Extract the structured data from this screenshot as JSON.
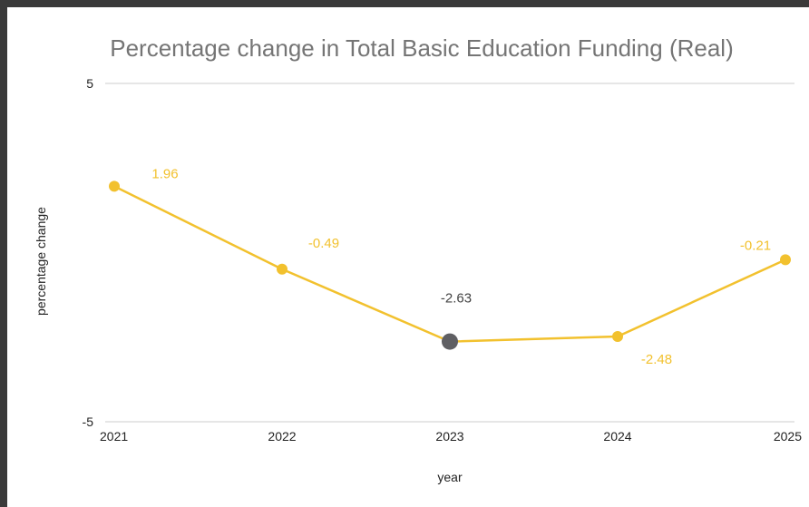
{
  "colors": {
    "series": "#f2c12e",
    "highlight_point": "#5f5f63",
    "highlight_label": "#444444",
    "gridline": "#cccccc",
    "frame": "#3a3a3a"
  },
  "chart_data": {
    "type": "line",
    "title": "Percentage change in Total Basic Education Funding (Real)",
    "xlabel": "year",
    "ylabel": "percentage change",
    "categories": [
      "2021",
      "2022",
      "2023",
      "2024",
      "2025"
    ],
    "series": [
      {
        "values": [
          1.96,
          -0.49,
          -2.63,
          -2.48,
          -0.21
        ],
        "labels": [
          "1.96",
          "-0.49",
          "-2.63",
          "-2.48",
          "-0.21"
        ]
      }
    ],
    "highlight_index": 2,
    "ylim": [
      -5,
      5
    ],
    "yticks": [
      "5",
      "-5"
    ],
    "grid": true,
    "legend": "none"
  }
}
